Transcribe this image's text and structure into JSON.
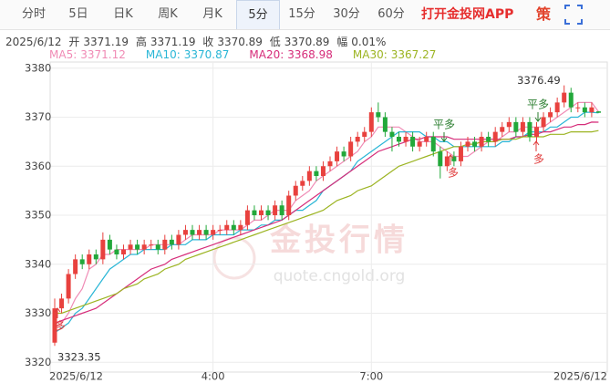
{
  "tabs": [
    {
      "label": "分时"
    },
    {
      "label": "5日"
    },
    {
      "label": "日K"
    },
    {
      "label": "周K"
    },
    {
      "label": "月K"
    },
    {
      "label": "5分",
      "selected": true
    },
    {
      "label": "15分"
    },
    {
      "label": "30分"
    },
    {
      "label": "60分"
    }
  ],
  "app_link": "打开金投网APP",
  "strategy": "策",
  "info": {
    "date": "2025/6/12",
    "labels": [
      "开",
      "高",
      "收",
      "低",
      "幅"
    ],
    "change": "0.01%"
  },
  "watermark": {
    "title": "金投行情",
    "url": "quote.cngold.org"
  },
  "signals": [
    "多",
    "平多",
    "多",
    "平多",
    "多"
  ],
  "chart_data": {
    "type": "candlestick",
    "categories": [
      "2025/6/12",
      null,
      null,
      null,
      null,
      null,
      null,
      null,
      null,
      null,
      null,
      null,
      null,
      null,
      null,
      null,
      null,
      null,
      null,
      null,
      null,
      null,
      null,
      "4:00",
      null,
      null,
      null,
      null,
      null,
      null,
      null,
      null,
      null,
      null,
      null,
      null,
      null,
      null,
      null,
      null,
      null,
      null,
      null,
      null,
      null,
      null,
      "7:00",
      null,
      null,
      null,
      null,
      null,
      null,
      null,
      null,
      null,
      null,
      null,
      null,
      null,
      null,
      null,
      null,
      null,
      null,
      null,
      null,
      null,
      null,
      null,
      null,
      null,
      null,
      null,
      null,
      null,
      null,
      null,
      null,
      "2025/6/12"
    ],
    "open": [
      3324,
      3331,
      3333,
      3338,
      3341,
      3340,
      3342,
      3341,
      3345,
      3343,
      3342,
      3343,
      3344,
      3343,
      3344,
      3344,
      3343,
      3345,
      3344,
      3346,
      3347,
      3346,
      3347,
      3346,
      3347,
      3347,
      3348,
      3347,
      3348,
      3351,
      3350,
      3351,
      3350,
      3352,
      3350,
      3354,
      3356,
      3357,
      3359,
      3358,
      3360,
      3361,
      3363,
      3362,
      3365,
      3366,
      3367,
      3371,
      3370,
      3367,
      3366,
      3365,
      3366,
      3364,
      3365,
      3366,
      3363,
      3360,
      3362,
      3361,
      3364,
      3365,
      3364,
      3366,
      3365,
      3367,
      3368,
      3369,
      3367,
      3369,
      3366,
      3368,
      3370,
      3371,
      3373,
      3375,
      3372,
      3372,
      3371,
      3371.19
    ],
    "high": [
      3333,
      3334,
      3339,
      3342,
      3342,
      3343,
      3343,
      3346.5,
      3346,
      3344,
      3344,
      3345,
      3345,
      3345,
      3345,
      3345,
      3346,
      3346,
      3347,
      3348,
      3348,
      3348,
      3348,
      3348,
      3348,
      3349,
      3349,
      3349,
      3352,
      3352,
      3352,
      3352,
      3353,
      3353,
      3355,
      3357,
      3358,
      3360,
      3360,
      3361,
      3362,
      3364,
      3364,
      3366,
      3367,
      3368,
      3372,
      3373,
      3371,
      3368,
      3367,
      3367,
      3367,
      3366,
      3367,
      3367,
      3364,
      3363,
      3363,
      3365,
      3366,
      3366,
      3367,
      3367,
      3368,
      3369,
      3370,
      3370,
      3370,
      3370,
      3369,
      3371,
      3372,
      3374,
      3376.49,
      3376,
      3373,
      3373,
      3373,
      3371.19
    ],
    "low": [
      3323.35,
      3330,
      3332,
      3337,
      3339,
      3339,
      3340,
      3340,
      3342,
      3341,
      3341,
      3342,
      3342,
      3342,
      3343,
      3342,
      3342,
      3343,
      3343,
      3345,
      3345,
      3345,
      3345,
      3345,
      3346,
      3346,
      3346,
      3346,
      3347,
      3349,
      3349,
      3349,
      3349,
      3349,
      3349,
      3353,
      3355,
      3356,
      3357,
      3357,
      3359,
      3360,
      3361,
      3361,
      3364,
      3365,
      3366,
      3369,
      3366,
      3363,
      3364,
      3364,
      3363,
      3363,
      3364,
      3362,
      3357.5,
      3359,
      3360,
      3360,
      3363,
      3363,
      3363,
      3364,
      3364,
      3366,
      3367,
      3366,
      3366,
      3365,
      3365,
      3367,
      3369,
      3370,
      3372,
      3371,
      3371,
      3370,
      3370,
      3370.89
    ],
    "close": [
      3331,
      3333,
      3338,
      3341,
      3340,
      3342,
      3341,
      3345,
      3343,
      3342,
      3343,
      3344,
      3343,
      3344,
      3344,
      3343,
      3345,
      3344,
      3346,
      3347,
      3346,
      3347,
      3346,
      3347,
      3347,
      3348,
      3347,
      3348,
      3351,
      3350,
      3351,
      3350,
      3352,
      3350,
      3354,
      3356,
      3357,
      3359,
      3358,
      3360,
      3361,
      3363,
      3362,
      3365,
      3366,
      3367,
      3371,
      3370,
      3367,
      3366,
      3365,
      3366,
      3364,
      3365,
      3366,
      3363,
      3360,
      3362,
      3361,
      3364,
      3365,
      3364,
      3366,
      3365,
      3367,
      3368,
      3369,
      3367,
      3369,
      3366,
      3368,
      3370,
      3371,
      3373,
      3375,
      3372,
      3372,
      3371,
      3372,
      3370.89
    ],
    "up_color": "#e8413e",
    "down_color": "#22a83a",
    "series": [
      {
        "name": "MA5:",
        "color": "#f08bb5",
        "values": [
          3327,
          3328,
          3330,
          3333,
          3335,
          3339,
          3340,
          3342,
          3342,
          3343,
          3343,
          3343,
          3343,
          3343,
          3344,
          3344,
          3344,
          3344,
          3344,
          3345,
          3346,
          3346,
          3346,
          3346,
          3347,
          3347,
          3347,
          3347,
          3348,
          3349,
          3349,
          3350,
          3351,
          3351,
          3351,
          3353,
          3354,
          3355,
          3357,
          3358,
          3359,
          3360,
          3361,
          3362,
          3363,
          3365,
          3366,
          3368,
          3368,
          3368,
          3368,
          3367,
          3366,
          3365,
          3365,
          3365,
          3364,
          3363,
          3362,
          3362,
          3362,
          3363,
          3364,
          3365,
          3365,
          3366,
          3367,
          3367,
          3368,
          3368,
          3368,
          3368,
          3369,
          3370,
          3371,
          3372,
          3373,
          3373,
          3373,
          3371.12
        ]
      },
      {
        "name": "MA10:",
        "color": "#29b6d6",
        "values": [
          3326,
          3327,
          3328,
          3330,
          3331,
          3333,
          3335,
          3337,
          3339,
          3340,
          3341,
          3342,
          3342,
          3343,
          3343,
          3343,
          3343,
          3344,
          3344,
          3344,
          3345,
          3345,
          3345,
          3346,
          3346,
          3346,
          3346,
          3347,
          3347,
          3347,
          3348,
          3348,
          3349,
          3349,
          3350,
          3351,
          3351,
          3352,
          3353,
          3355,
          3356,
          3357,
          3358,
          3359,
          3361,
          3362,
          3363,
          3364,
          3365,
          3366,
          3367,
          3367,
          3367,
          3367,
          3366,
          3366,
          3365,
          3365,
          3364,
          3364,
          3364,
          3364,
          3364,
          3364,
          3364,
          3365,
          3365,
          3366,
          3366,
          3367,
          3367,
          3367,
          3368,
          3368,
          3369,
          3370,
          3370,
          3371,
          3371,
          3370.87
        ]
      },
      {
        "name": "MA20:",
        "color": "#d62d7a",
        "values": [
          3328,
          3328.5,
          3329,
          3329.5,
          3330,
          3330.5,
          3331,
          3332,
          3333,
          3334,
          3335,
          3336,
          3337,
          3338,
          3339,
          3339.5,
          3340,
          3341,
          3341.5,
          3342,
          3342.5,
          3343,
          3343.5,
          3344,
          3344.5,
          3345,
          3345.5,
          3346,
          3346.5,
          3347,
          3347.5,
          3348,
          3348.5,
          3349,
          3350,
          3351,
          3352,
          3353,
          3354,
          3355,
          3356,
          3357,
          3358,
          3359,
          3360,
          3361,
          3362,
          3363,
          3363.5,
          3364,
          3364.5,
          3365,
          3365.5,
          3365.5,
          3366,
          3366,
          3366,
          3366,
          3365.5,
          3365.5,
          3365.5,
          3365.5,
          3365.5,
          3365.5,
          3365.5,
          3365.5,
          3365.5,
          3366,
          3366,
          3366.5,
          3366.5,
          3367,
          3367,
          3367.5,
          3368,
          3368,
          3368.5,
          3368.5,
          3369,
          3368.98
        ]
      },
      {
        "name": "MA30:",
        "color": "#9cb422",
        "values": [
          3330,
          3330,
          3330.5,
          3331,
          3331.5,
          3332,
          3332.5,
          3333,
          3333.5,
          3334,
          3335,
          3335.5,
          3336,
          3337,
          3337.5,
          3338,
          3339,
          3339.5,
          3340,
          3341,
          3341.5,
          3342,
          3342.5,
          3343,
          3343.5,
          3344,
          3344.5,
          3345,
          3345.5,
          3346,
          3346.5,
          3347,
          3347.5,
          3348,
          3348.5,
          3349,
          3349.5,
          3350,
          3350.5,
          3351,
          3352,
          3353,
          3353.5,
          3354,
          3355,
          3355.5,
          3356,
          3357,
          3358,
          3359,
          3360,
          3360.5,
          3361,
          3361.5,
          3362,
          3362.5,
          3363,
          3363.5,
          3364,
          3364,
          3364.5,
          3364.5,
          3365,
          3365,
          3365,
          3365.5,
          3365.5,
          3365.5,
          3366,
          3366,
          3366,
          3366,
          3366.5,
          3366.5,
          3366.5,
          3367,
          3367,
          3367,
          3367,
          3367.27
        ]
      }
    ],
    "ylim": [
      3318,
      3382
    ],
    "yticks": [
      3320,
      3330,
      3340,
      3350,
      3360,
      3370,
      3380
    ],
    "grid": true
  }
}
